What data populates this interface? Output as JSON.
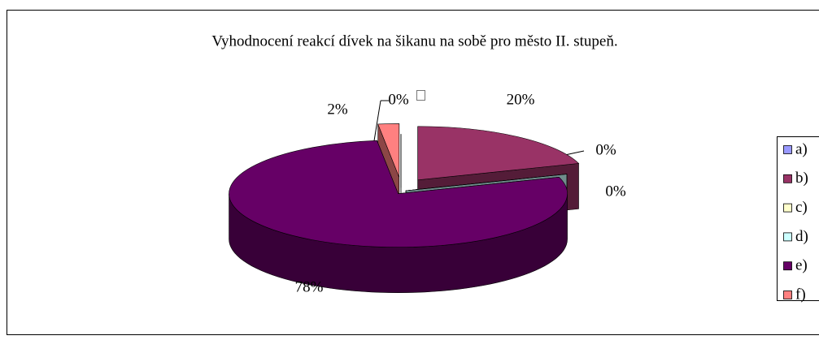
{
  "chart_data": {
    "type": "pie3d",
    "title": "Vyhodnocení reakcí dívek na šikanu  na sobě  pro město II. stupeň.",
    "categories": [
      "a)",
      "b)",
      "c)",
      "d)",
      "e)",
      "f)"
    ],
    "values": [
      0,
      20,
      0,
      0,
      78,
      2
    ],
    "value_labels": [
      "0%",
      "20%",
      "0%",
      "0%",
      "78%",
      "2%"
    ],
    "colors": [
      "#9999ff",
      "#993366",
      "#ffffcc",
      "#ccffff",
      "#660066",
      "#ff8080"
    ]
  }
}
